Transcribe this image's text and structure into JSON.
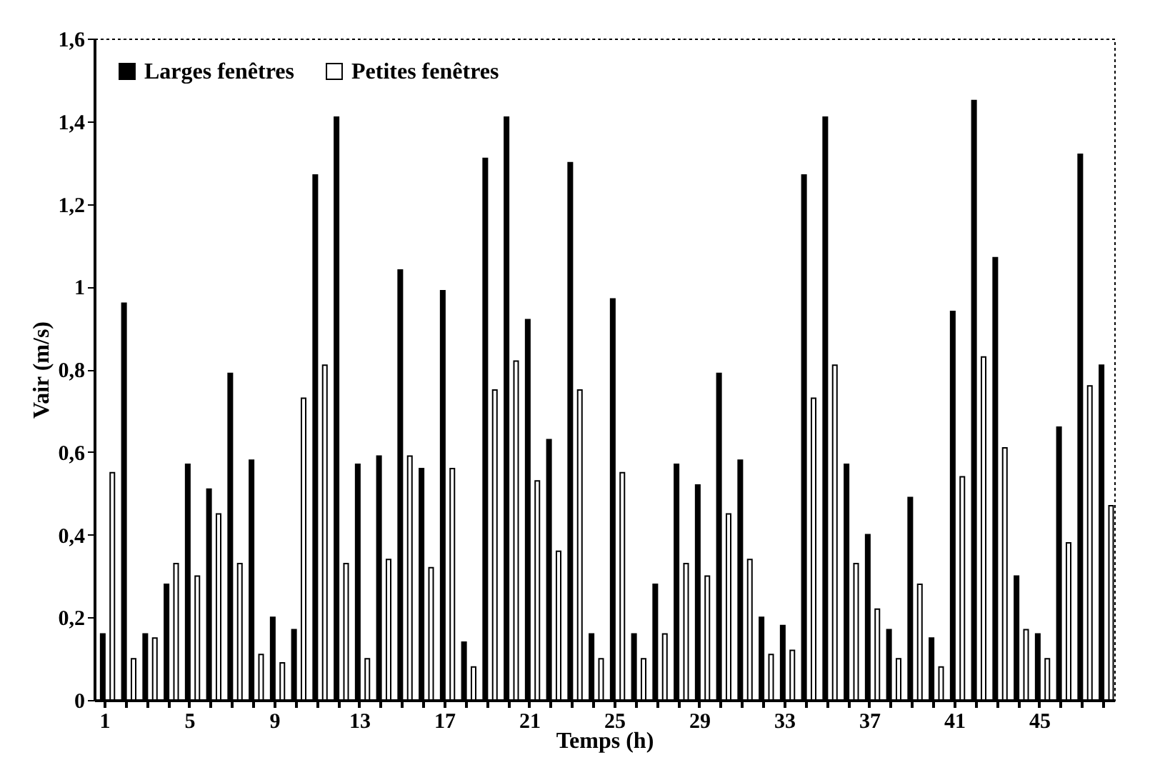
{
  "chart_data": {
    "type": "bar",
    "xlabel": "Temps (h)",
    "ylabel": "Vair (m/s)",
    "categories": [
      "1",
      null,
      null,
      null,
      "5",
      null,
      null,
      null,
      "9",
      null,
      null,
      null,
      "13",
      null,
      null,
      null,
      "17",
      null,
      null,
      null,
      "21",
      null,
      null,
      null,
      "25",
      null,
      null,
      null,
      "29",
      null,
      null,
      null,
      "33",
      null,
      null,
      null,
      "37",
      null,
      null,
      null,
      "41",
      null,
      null,
      null,
      "45",
      null,
      null,
      null
    ],
    "series": [
      {
        "name": "Larges fenêtres",
        "color": "#000000",
        "values": [
          0.16,
          0.96,
          0.16,
          0.28,
          0.57,
          0.51,
          0.79,
          0.58,
          0.2,
          0.17,
          1.27,
          1.41,
          0.57,
          0.59,
          1.04,
          0.56,
          0.99,
          0.14,
          1.31,
          1.41,
          0.92,
          0.63,
          1.3,
          0.16,
          0.97,
          0.16,
          0.28,
          0.57,
          0.52,
          0.79,
          0.58,
          0.2,
          0.18,
          1.27,
          1.41,
          0.57,
          0.4,
          0.17,
          0.49,
          0.15,
          0.94,
          1.45,
          1.07,
          0.3,
          0.16,
          0.66,
          1.32,
          0.81
        ]
      },
      {
        "name": "Petites fenêtres",
        "color": "#ffffff",
        "values": [
          0.55,
          0.1,
          0.15,
          0.33,
          0.3,
          0.45,
          0.33,
          0.11,
          0.09,
          0.73,
          0.81,
          0.33,
          0.1,
          0.34,
          0.59,
          0.32,
          0.56,
          0.08,
          0.75,
          0.82,
          0.53,
          0.36,
          0.75,
          0.1,
          0.55,
          0.1,
          0.16,
          0.33,
          0.3,
          0.45,
          0.34,
          0.11,
          0.12,
          0.73,
          0.81,
          0.33,
          0.22,
          0.1,
          0.28,
          0.08,
          0.54,
          0.83,
          0.61,
          0.17,
          0.1,
          0.38,
          0.76,
          0.47
        ]
      }
    ],
    "ylim": [
      0,
      1.6
    ],
    "yticks": [
      0,
      {
        "value": 0.2,
        "label": "0,2"
      },
      {
        "value": 0.4,
        "label": "0,4"
      },
      {
        "value": 0.6,
        "label": "0,6"
      },
      {
        "value": 0.8,
        "label": "0,8"
      },
      1,
      {
        "value": 1.2,
        "label": "1,2"
      },
      {
        "value": 1.4,
        "label": "1,4"
      },
      {
        "value": 1.6,
        "label": "1,6"
      }
    ],
    "legend": "top left"
  }
}
